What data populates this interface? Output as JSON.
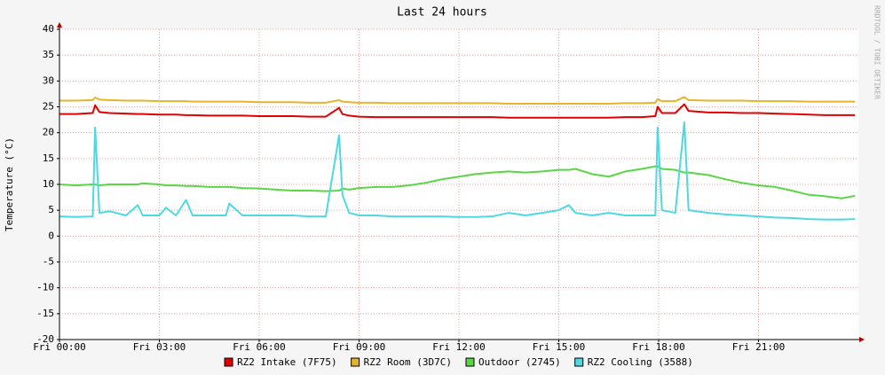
{
  "chart_data": {
    "type": "line",
    "title": "Last 24 hours",
    "y_label": "Temperature (°C)",
    "watermark": "RRDTOOL / TOBI OETIKER",
    "x": [
      0,
      0.5,
      1.0,
      1.07,
      1.2,
      1.5,
      2,
      2.35,
      2.5,
      3,
      3.2,
      3.5,
      3.8,
      4,
      4.5,
      5,
      5.1,
      5.5,
      6,
      6.5,
      7,
      7.5,
      8,
      8.4,
      8.5,
      8.7,
      9,
      9.5,
      10,
      10.5,
      11,
      11.5,
      12,
      12.5,
      13,
      13.5,
      14,
      14.5,
      15,
      15.3,
      15.5,
      16,
      16.5,
      17,
      17.5,
      17.9,
      17.97,
      18.1,
      18.5,
      18.77,
      18.9,
      19.5,
      20,
      20.5,
      21,
      21.5,
      22,
      22.5,
      23,
      23.5,
      23.9
    ],
    "xlim": [
      0,
      24
    ],
    "xticks": [
      {
        "value": 0,
        "label": "Fri 00:00"
      },
      {
        "value": 3,
        "label": "Fri 03:00"
      },
      {
        "value": 6,
        "label": "Fri 06:00"
      },
      {
        "value": 9,
        "label": "Fri 09:00"
      },
      {
        "value": 12,
        "label": "Fri 12:00"
      },
      {
        "value": 15,
        "label": "Fri 15:00"
      },
      {
        "value": 18,
        "label": "Fri 18:00"
      },
      {
        "value": 21,
        "label": "Fri 21:00"
      }
    ],
    "ylim": [
      -20,
      40
    ],
    "yticks": [
      -20,
      -15,
      -10,
      -5,
      0,
      5,
      10,
      15,
      20,
      25,
      30,
      35,
      40
    ],
    "grid": true,
    "series": [
      {
        "name": "RZ2 Intake (7F75)",
        "color": "#e00000",
        "values": [
          23.6,
          23.6,
          23.8,
          25.3,
          24,
          23.8,
          23.7,
          23.6,
          23.6,
          23.5,
          23.5,
          23.5,
          23.4,
          23.4,
          23.3,
          23.3,
          23.3,
          23.3,
          23.2,
          23.2,
          23.2,
          23.1,
          23.1,
          24.8,
          23.6,
          23.3,
          23.1,
          23,
          23,
          23,
          23,
          23,
          23,
          23,
          23,
          22.9,
          22.9,
          22.9,
          22.9,
          22.9,
          22.9,
          22.9,
          22.9,
          23,
          23,
          23.2,
          25,
          23.8,
          23.8,
          25.5,
          24.2,
          23.9,
          23.9,
          23.8,
          23.8,
          23.7,
          23.6,
          23.5,
          23.4,
          23.4,
          23.4
        ]
      },
      {
        "name": "RZ2 Room (3D7C)",
        "color": "#e6b42a",
        "values": [
          26.2,
          26.2,
          26.3,
          26.8,
          26.4,
          26.3,
          26.2,
          26.2,
          26.2,
          26.1,
          26.1,
          26.1,
          26.1,
          26,
          26,
          26,
          26,
          26,
          25.9,
          25.9,
          25.9,
          25.8,
          25.8,
          26.3,
          26,
          25.9,
          25.8,
          25.8,
          25.7,
          25.7,
          25.7,
          25.7,
          25.7,
          25.7,
          25.7,
          25.6,
          25.6,
          25.6,
          25.6,
          25.6,
          25.6,
          25.6,
          25.6,
          25.7,
          25.7,
          25.8,
          26.5,
          26.1,
          26.1,
          26.9,
          26.3,
          26.2,
          26.2,
          26.2,
          26.1,
          26.1,
          26.1,
          26,
          26,
          26,
          26
        ]
      },
      {
        "name": "Outdoor (2745)",
        "color": "#5ad645",
        "values": [
          10,
          9.8,
          10,
          10,
          9.8,
          10,
          10,
          10,
          10.2,
          10,
          9.8,
          9.8,
          9.7,
          9.7,
          9.5,
          9.5,
          9.5,
          9.3,
          9.2,
          9,
          8.8,
          8.8,
          8.7,
          8.8,
          9.2,
          9,
          9.3,
          9.5,
          9.5,
          9.8,
          10.3,
          11,
          11.5,
          12,
          12.3,
          12.5,
          12.3,
          12.5,
          12.8,
          12.8,
          13,
          12,
          11.5,
          12.5,
          13,
          13.5,
          13.5,
          13,
          12.8,
          12.3,
          12.3,
          11.8,
          11,
          10.3,
          9.8,
          9.5,
          8.8,
          8,
          7.7,
          7.3,
          7.8
        ]
      },
      {
        "name": "RZ2 Cooling (3588)",
        "color": "#4ed8e0",
        "values": [
          3.8,
          3.7,
          3.8,
          21,
          4.5,
          4.8,
          4,
          6,
          4,
          4,
          5.5,
          4,
          7,
          4,
          4,
          4,
          6.3,
          4,
          4,
          4,
          4,
          3.8,
          3.8,
          19.5,
          8,
          4.5,
          4,
          4,
          3.8,
          3.8,
          3.8,
          3.8,
          3.7,
          3.7,
          3.8,
          4.5,
          4,
          4.5,
          5,
          6,
          4.5,
          4,
          4.5,
          4,
          4,
          4,
          21,
          5,
          4.5,
          22,
          5,
          4.5,
          4.2,
          4,
          3.8,
          3.6,
          3.5,
          3.3,
          3.2,
          3.2,
          3.3
        ]
      }
    ]
  }
}
